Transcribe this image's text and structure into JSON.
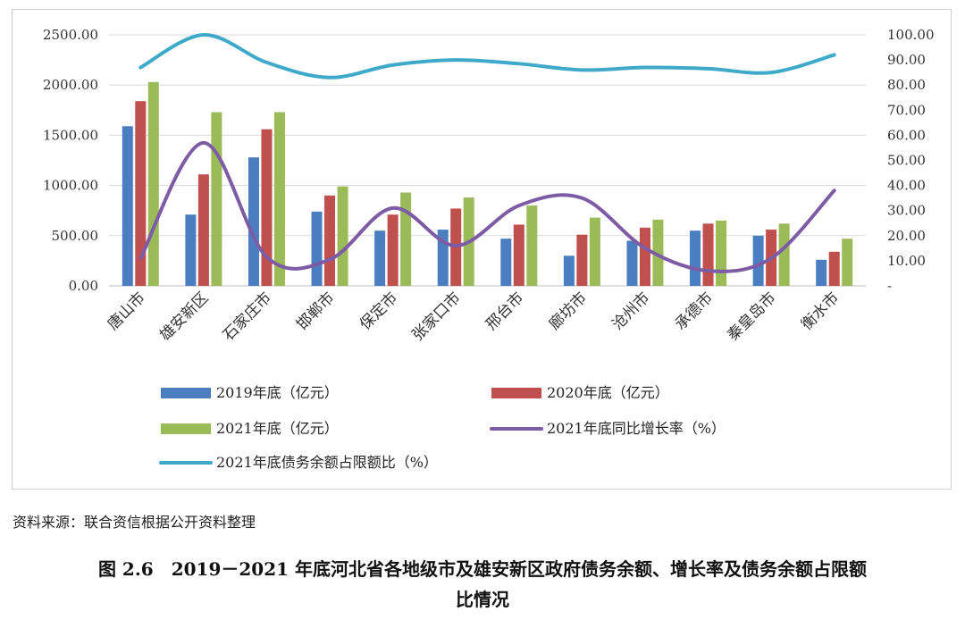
{
  "chart_data": {
    "type": "bar",
    "categories": [
      "唐山市",
      "雄安新区",
      "石家庄市",
      "邯郸市",
      "保定市",
      "张家口市",
      "邢台市",
      "廊坊市",
      "沧州市",
      "承德市",
      "秦皇岛市",
      "衡水市"
    ],
    "series": [
      {
        "name": "2019年底（亿元）",
        "type": "bar",
        "axis": "left",
        "color": "#4a7ec0",
        "values": [
          1590,
          710,
          1280,
          740,
          550,
          560,
          470,
          300,
          450,
          550,
          500,
          260
        ]
      },
      {
        "name": "2020年底（亿元）",
        "type": "bar",
        "axis": "left",
        "color": "#c0504d",
        "values": [
          1840,
          1110,
          1560,
          900,
          710,
          770,
          610,
          510,
          580,
          620,
          560,
          340
        ]
      },
      {
        "name": "2021年底（亿元）",
        "type": "bar",
        "axis": "left",
        "color": "#9bbb59",
        "values": [
          2030,
          1730,
          1730,
          990,
          930,
          880,
          800,
          680,
          660,
          650,
          620,
          470
        ]
      },
      {
        "name": "2021年底同比增长率（%）",
        "type": "line",
        "axis": "right",
        "color": "#7d5ca5",
        "values": [
          11,
          57,
          11.5,
          10.5,
          31,
          16,
          32,
          35,
          15,
          6,
          11,
          38
        ]
      },
      {
        "name": "2021年底债务余额占限额比（%）",
        "type": "line",
        "axis": "right",
        "color": "#3fa9c9",
        "values": [
          87,
          100,
          89,
          83,
          88,
          90,
          88.5,
          86,
          87,
          86.5,
          85,
          92
        ]
      }
    ],
    "y_left": {
      "ticks": [
        "0.00",
        "500.00",
        "1000.00",
        "1500.00",
        "2000.00",
        "2500.00"
      ],
      "range": [
        0,
        2500
      ]
    },
    "y_right": {
      "ticks": [
        "-",
        "10.00",
        "20.00",
        "30.00",
        "40.00",
        "50.00",
        "60.00",
        "70.00",
        "80.00",
        "90.00",
        "100.00"
      ],
      "range": [
        0,
        100
      ]
    },
    "legend_position": "bottom"
  },
  "source_note": "资料来源：联合资信根据公开资料整理",
  "caption": {
    "line1": "图 2.6　2019－2021 年底河北省各地级市及雄安新区政府债务余额、增长率及债务余额占限额",
    "line2": "比情况"
  }
}
